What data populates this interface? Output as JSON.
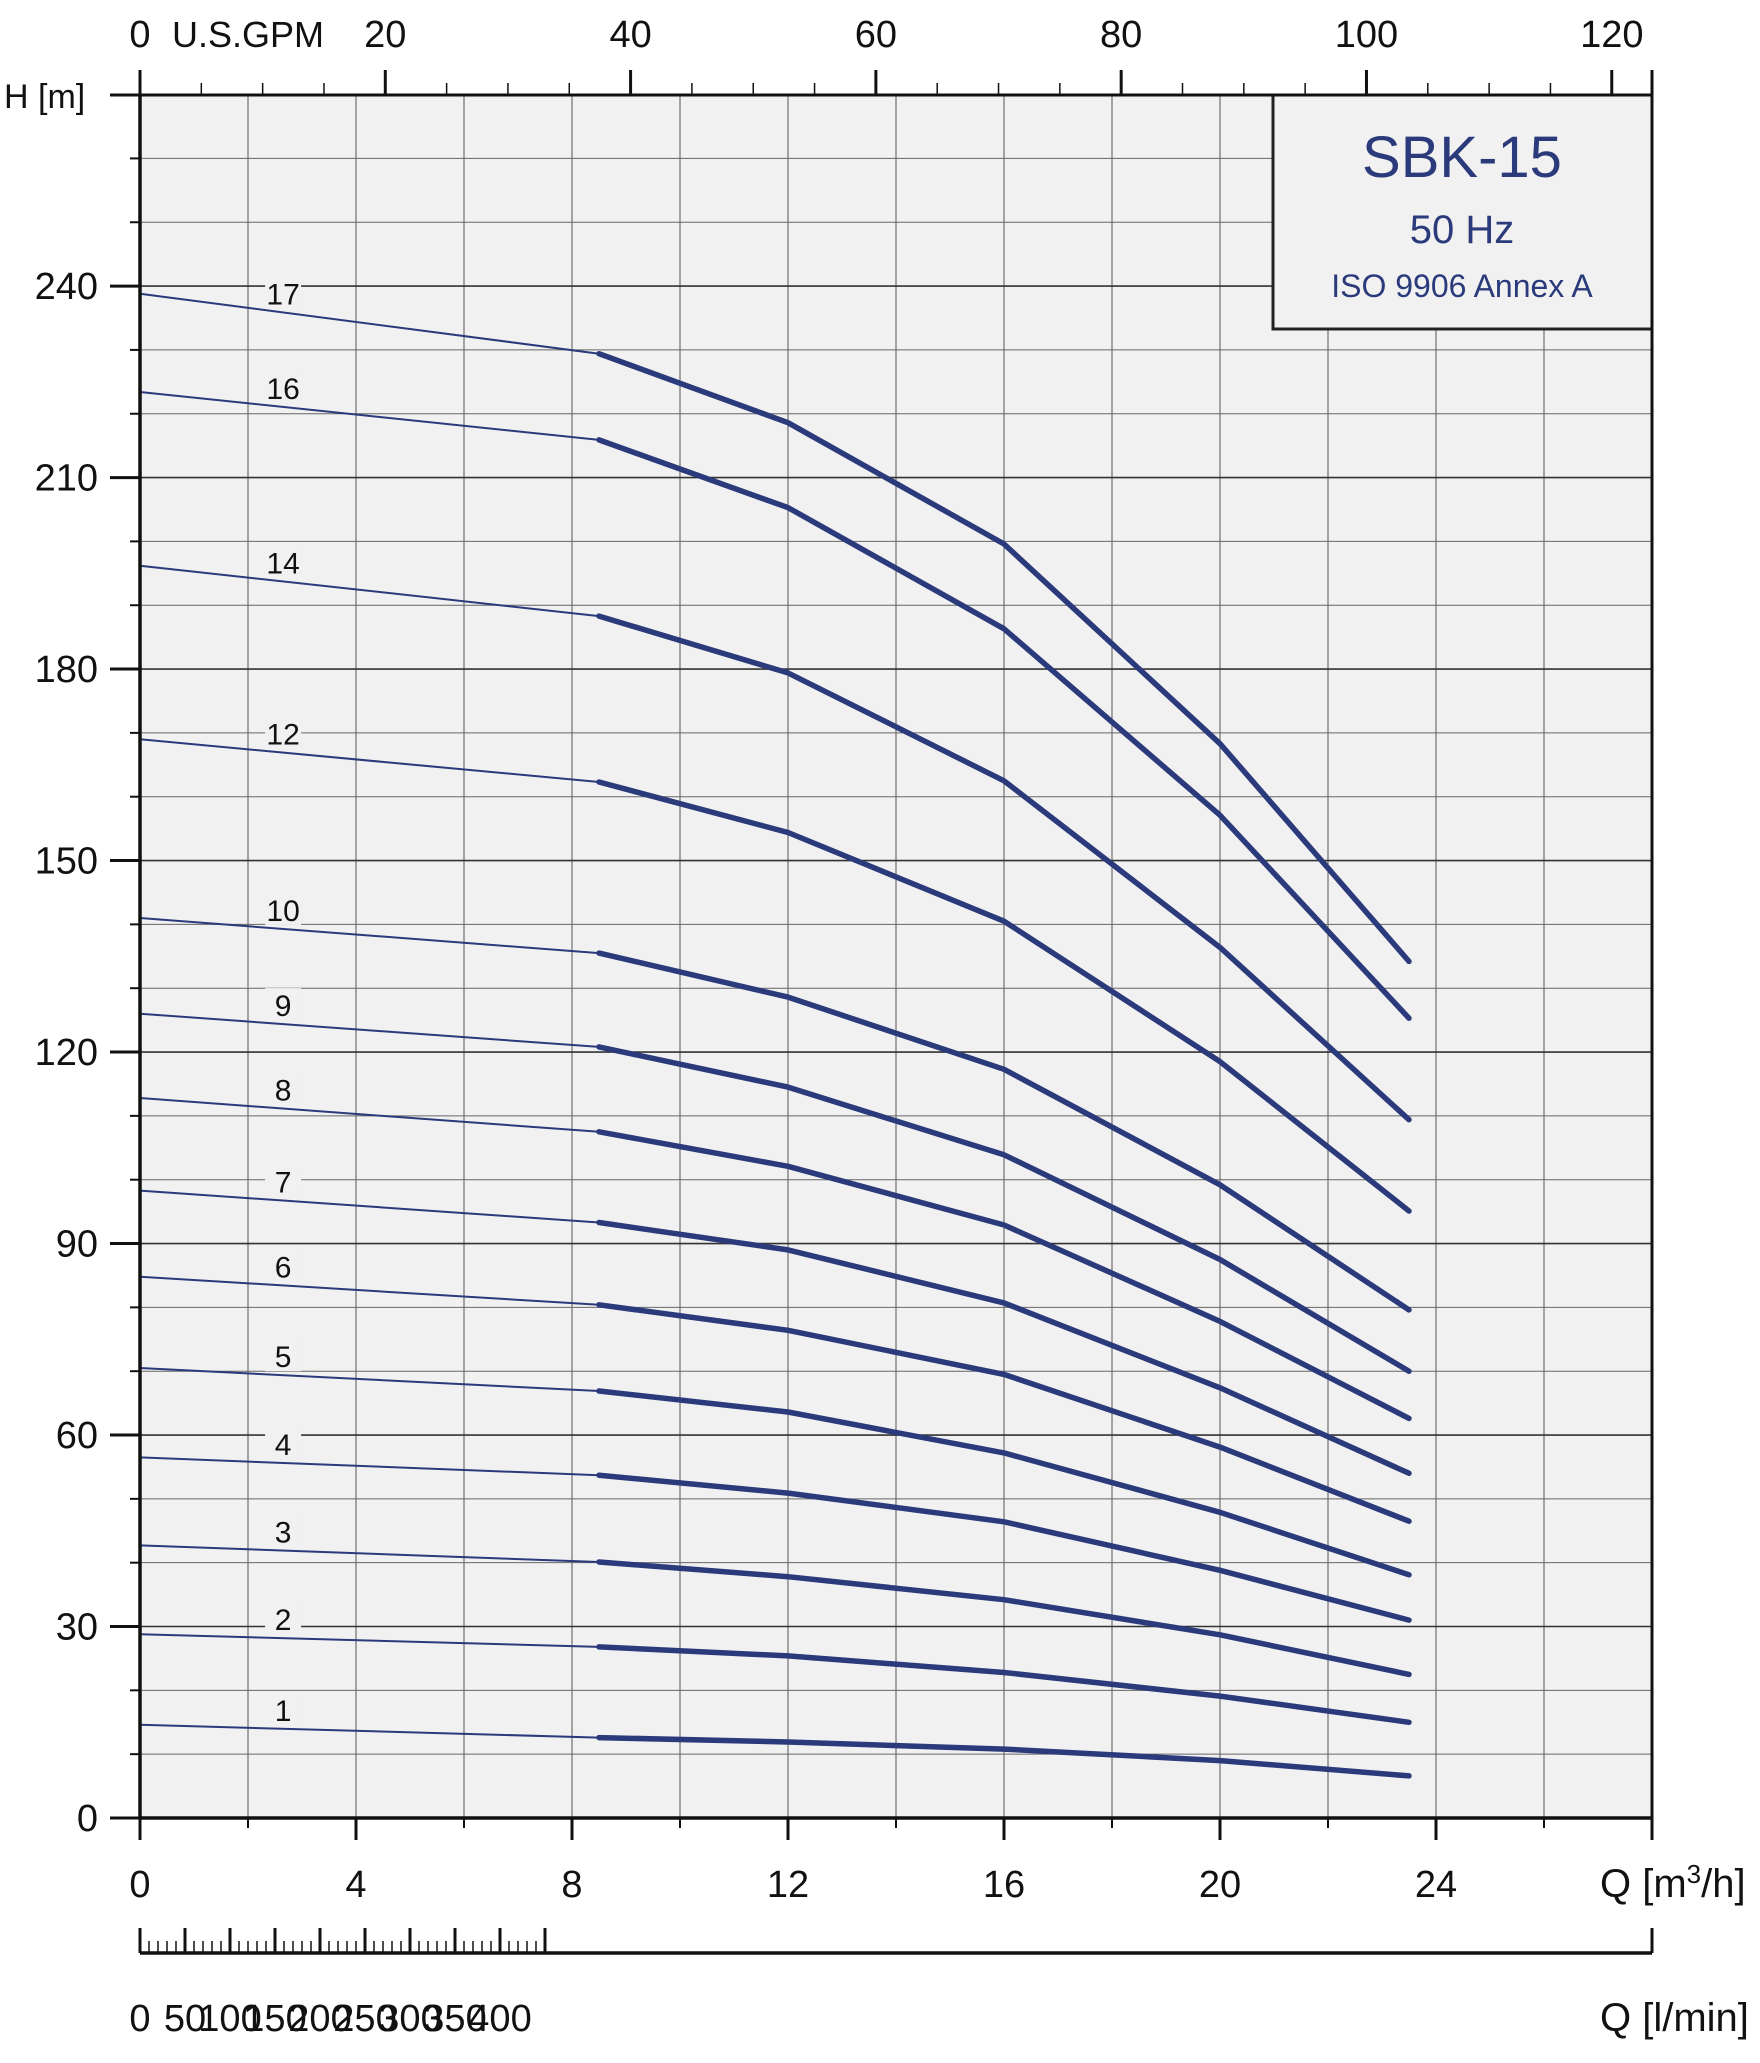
{
  "chart_data": {
    "type": "line",
    "title": "SBK-15",
    "subtitle": "50 Hz",
    "standard": "ISO 9906 Annex A",
    "ylabel": "H [m]",
    "xlabel": "Q [m³/h]",
    "xlabel_main": "Q [m",
    "xlabel_sup": "3",
    "xlabel_tail": "/h]",
    "top_axis_label": "U.S.GPM",
    "bottom_axis_label": "Q [l/min]",
    "xlim": [
      0,
      28
    ],
    "ylim": [
      0,
      270
    ],
    "x_ticks": [
      0,
      4,
      8,
      12,
      16,
      20,
      24
    ],
    "y_ticks": [
      0,
      30,
      60,
      90,
      120,
      150,
      180,
      210,
      240
    ],
    "gpm_ticks": [
      0,
      20,
      40,
      60,
      80,
      100,
      120
    ],
    "lmin_ticks": [
      0,
      50,
      100,
      150,
      200,
      250,
      300,
      350,
      400
    ],
    "grid": true,
    "series": [
      {
        "name": "1",
        "points": [
          [
            0,
            14.6
          ],
          [
            8.5,
            12.6
          ],
          [
            12,
            11.9
          ],
          [
            16,
            10.8
          ],
          [
            20,
            9.0
          ],
          [
            23.5,
            6.6
          ]
        ]
      },
      {
        "name": "2",
        "points": [
          [
            0,
            28.8
          ],
          [
            8.5,
            26.8
          ],
          [
            12,
            25.4
          ],
          [
            16,
            22.8
          ],
          [
            20,
            19.1
          ],
          [
            23.5,
            15.0
          ]
        ]
      },
      {
        "name": "3",
        "points": [
          [
            0,
            42.7
          ],
          [
            8.5,
            40.1
          ],
          [
            12,
            37.8
          ],
          [
            16,
            34.2
          ],
          [
            20,
            28.7
          ],
          [
            23.5,
            22.5
          ]
        ]
      },
      {
        "name": "4",
        "points": [
          [
            0,
            56.5
          ],
          [
            8.5,
            53.7
          ],
          [
            12,
            50.9
          ],
          [
            16,
            46.4
          ],
          [
            20,
            38.8
          ],
          [
            23.5,
            31.0
          ]
        ]
      },
      {
        "name": "5",
        "points": [
          [
            0,
            70.5
          ],
          [
            8.5,
            66.9
          ],
          [
            12,
            63.6
          ],
          [
            16,
            57.2
          ],
          [
            20,
            47.9
          ],
          [
            23.5,
            38.1
          ]
        ]
      },
      {
        "name": "6",
        "points": [
          [
            0,
            84.8
          ],
          [
            8.5,
            80.4
          ],
          [
            12,
            76.4
          ],
          [
            16,
            69.5
          ],
          [
            20,
            58.1
          ],
          [
            23.5,
            46.5
          ]
        ]
      },
      {
        "name": "7",
        "points": [
          [
            0,
            98.3
          ],
          [
            8.5,
            93.3
          ],
          [
            12,
            89.0
          ],
          [
            16,
            80.7
          ],
          [
            20,
            67.4
          ],
          [
            23.5,
            54.0
          ]
        ]
      },
      {
        "name": "8",
        "points": [
          [
            0,
            112.8
          ],
          [
            8.5,
            107.5
          ],
          [
            12,
            102.1
          ],
          [
            16,
            92.9
          ],
          [
            20,
            77.8
          ],
          [
            23.5,
            62.6
          ]
        ]
      },
      {
        "name": "9",
        "points": [
          [
            0,
            126.0
          ],
          [
            8.5,
            120.8
          ],
          [
            12,
            114.5
          ],
          [
            16,
            103.9
          ],
          [
            20,
            87.5
          ],
          [
            23.5,
            70.0
          ]
        ]
      },
      {
        "name": "10",
        "points": [
          [
            0,
            141.0
          ],
          [
            8.5,
            135.5
          ],
          [
            12,
            128.6
          ],
          [
            16,
            117.3
          ],
          [
            20,
            99.2
          ],
          [
            23.5,
            79.6
          ]
        ]
      },
      {
        "name": "12",
        "points": [
          [
            0,
            169.0
          ],
          [
            8.5,
            162.3
          ],
          [
            12,
            154.4
          ],
          [
            16,
            140.5
          ],
          [
            20,
            118.5
          ],
          [
            23.5,
            95.1
          ]
        ]
      },
      {
        "name": "14",
        "points": [
          [
            0,
            196.2
          ],
          [
            8.5,
            188.3
          ],
          [
            12,
            179.4
          ],
          [
            16,
            162.5
          ],
          [
            20,
            136.4
          ],
          [
            23.5,
            109.4
          ]
        ]
      },
      {
        "name": "16",
        "points": [
          [
            0,
            223.4
          ],
          [
            8.5,
            215.9
          ],
          [
            12,
            205.3
          ],
          [
            16,
            186.3
          ],
          [
            20,
            157.1
          ],
          [
            23.5,
            125.3
          ]
        ]
      },
      {
        "name": "17",
        "points": [
          [
            0,
            238.8
          ],
          [
            8.5,
            229.4
          ],
          [
            12,
            218.6
          ],
          [
            16,
            199.6
          ],
          [
            20,
            168.3
          ],
          [
            23.5,
            134.2
          ]
        ]
      }
    ],
    "line_color": "#2b3a7a"
  }
}
